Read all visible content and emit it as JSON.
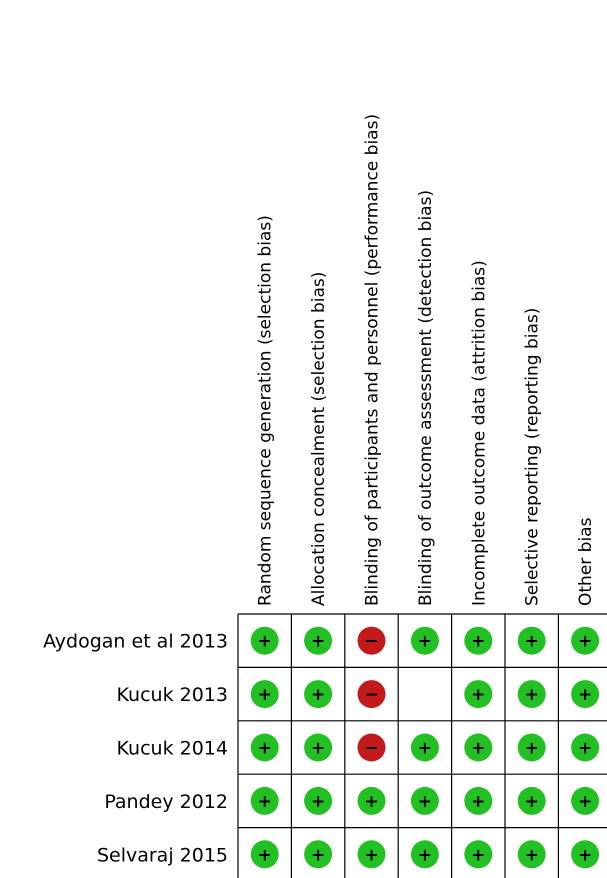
{
  "domains": [
    "Random sequence generation (selection bias)",
    "Allocation concealment (selection bias)",
    "Blinding of participants and personnel (performance bias)",
    "Blinding of outcome assessment (detection bias)",
    "Incomplete outcome data (attrition bias)",
    "Selective reporting (reporting bias)",
    "Other bias"
  ],
  "studies": [
    {
      "name": "Aydogan et al 2013",
      "judgements": [
        "low",
        "low",
        "high",
        "low",
        "low",
        "low",
        "low"
      ]
    },
    {
      "name": "Kucuk 2013",
      "judgements": [
        "low",
        "low",
        "high",
        "",
        "low",
        "low",
        "low"
      ]
    },
    {
      "name": "Kucuk 2014",
      "judgements": [
        "low",
        "low",
        "high",
        "low",
        "low",
        "low",
        "low"
      ]
    },
    {
      "name": "Pandey 2012",
      "judgements": [
        "low",
        "low",
        "low",
        "low",
        "low",
        "low",
        "low"
      ]
    },
    {
      "name": "Selvaraj 2015",
      "judgements": [
        "low",
        "low",
        "low",
        "low",
        "low",
        "low",
        "low"
      ]
    }
  ],
  "judgement_styles": {
    "low": {
      "symbol": "+",
      "color": "#22c022"
    },
    "high": {
      "symbol": "−",
      "color": "#c21a1a"
    }
  }
}
